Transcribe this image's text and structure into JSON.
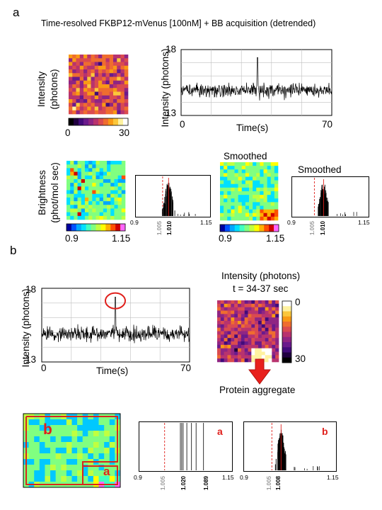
{
  "panel_a": {
    "label": "a",
    "title": "Time-resolved FKBP12-mVenus [100nM] + BB acquisition (detrended)",
    "intensity_ylabel_1": "Intensity",
    "intensity_ylabel_2": "(photons)",
    "intensity_colorbar": {
      "min": "0",
      "max": "30"
    },
    "trace_ylabel": "Intensity (photons)",
    "trace_xlabel": "Time(s)",
    "trace_yticks": [
      "18",
      "13"
    ],
    "trace_xticks": [
      "0",
      "70"
    ],
    "brightness_ylabel_1": "Brightness",
    "brightness_ylabel_2": "(phot/mol sec)",
    "brightness_colorbar": {
      "min": "0.9",
      "max": "1.15"
    },
    "smoothed_label_1": "Smoothed",
    "smoothed_label_2": "Smoothed",
    "hist1": {
      "xticks": [
        "0.9",
        "1.15"
      ],
      "ref_label": "1.005",
      "peak_label": "1.010"
    },
    "hist2": {
      "xticks": [
        "0.9",
        "1.15"
      ],
      "ref_label": "1.005",
      "peak_label": "1.010"
    }
  },
  "panel_b": {
    "label": "b",
    "trace_ylabel": "Intensity (photons)",
    "trace_xlabel": "Time(s)",
    "trace_yticks": [
      "18",
      "13"
    ],
    "trace_xticks": [
      "0",
      "70"
    ],
    "map_title_1": "Intensity (photons)",
    "map_title_2": "t = 34-37 sec",
    "map_colorbar": {
      "top": "0",
      "bottom": "30"
    },
    "aggregate_label": "Protein aggregate",
    "region_a": "a",
    "region_b": "b",
    "hist_a": {
      "region": "a",
      "xticks": [
        "0.9",
        "1.15"
      ],
      "ref_label": "1.005",
      "labels": [
        "1.020",
        "1.089"
      ]
    },
    "hist_b": {
      "region": "b",
      "xticks": [
        "0.9",
        "1.15"
      ],
      "ref_label": "1.005",
      "peak_label": "1.008"
    }
  },
  "colors": {
    "trace": "#000000",
    "reference_line": "#e0201c",
    "annotation": "#e0201c",
    "grid": "#bfbfbf"
  }
}
